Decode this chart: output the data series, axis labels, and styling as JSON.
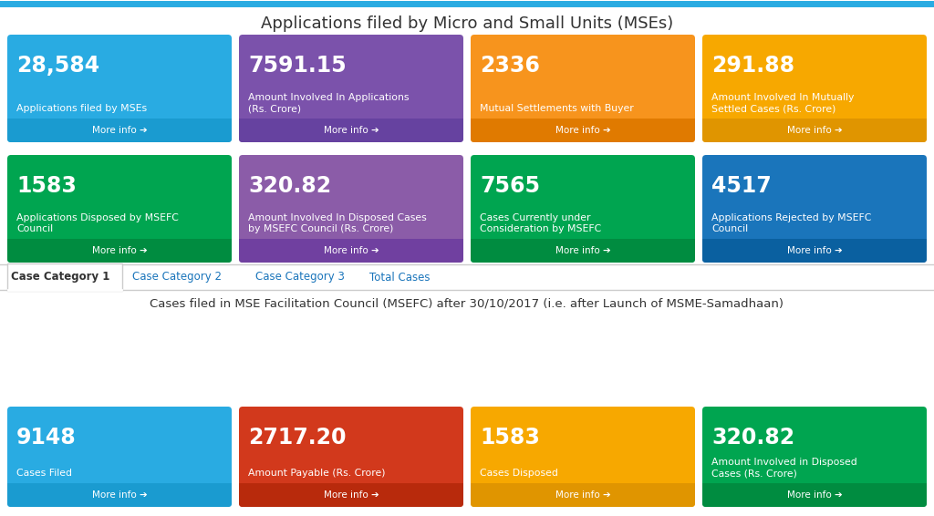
{
  "title1": "Applications filed by Micro and Small Units (MSEs)",
  "title2": "Cases filed in MSE Facilitation Council (MSEFC) after 30/10/2017 (i.e. after Launch of MSME-Samadhaan)",
  "tabs": [
    "Case Category 1",
    "Case Category 2",
    "Case Category 3",
    "Total Cases"
  ],
  "row1": [
    {
      "value": "28,584",
      "label": "Applications filed by MSEs",
      "color": "#29ABE2",
      "footer_color": "#1A9BD0"
    },
    {
      "value": "7591.15",
      "label": "Amount Involved In Applications\n(Rs. Crore)",
      "color": "#7B52AB",
      "footer_color": "#6642A0"
    },
    {
      "value": "2336",
      "label": "Mutual Settlements with Buyer",
      "color": "#F7941D",
      "footer_color": "#E07A00"
    },
    {
      "value": "291.88",
      "label": "Amount Involved In Mutually\nSettled Cases (Rs. Crore)",
      "color": "#F7A800",
      "footer_color": "#E09500"
    }
  ],
  "row2": [
    {
      "value": "1583",
      "label": "Applications Disposed by MSEFC\nCouncil",
      "color": "#00A550",
      "footer_color": "#008C40"
    },
    {
      "value": "320.82",
      "label": "Amount Involved In Disposed Cases\nby MSEFC Council (Rs. Crore)",
      "color": "#8B5CA8",
      "footer_color": "#7040A0"
    },
    {
      "value": "7565",
      "label": "Cases Currently under\nConsideration by MSEFC",
      "color": "#00A550",
      "footer_color": "#008C40"
    },
    {
      "value": "4517",
      "label": "Applications Rejected by MSEFC\nCouncil",
      "color": "#1A75BB",
      "footer_color": "#0A60A0"
    }
  ],
  "row3": [
    {
      "value": "9148",
      "label": "Cases Filed",
      "color": "#29ABE2",
      "footer_color": "#1A9BD0"
    },
    {
      "value": "2717.20",
      "label": "Amount Payable (Rs. Crore)",
      "color": "#D2391C",
      "footer_color": "#B82A0C"
    },
    {
      "value": "1583",
      "label": "Cases Disposed",
      "color": "#F7A800",
      "footer_color": "#E09500"
    },
    {
      "value": "320.82",
      "label": "Amount Involved in Disposed\nCases (Rs. Crore)",
      "color": "#00A550",
      "footer_color": "#008C40"
    }
  ],
  "more_info_text": "More info ➔",
  "bg_color": "#FFFFFF",
  "border_color": "#CCCCCC",
  "top_border_color": "#29ABE2",
  "tab_active_color": "#333333",
  "tab_inactive_color": "#1A75BB"
}
